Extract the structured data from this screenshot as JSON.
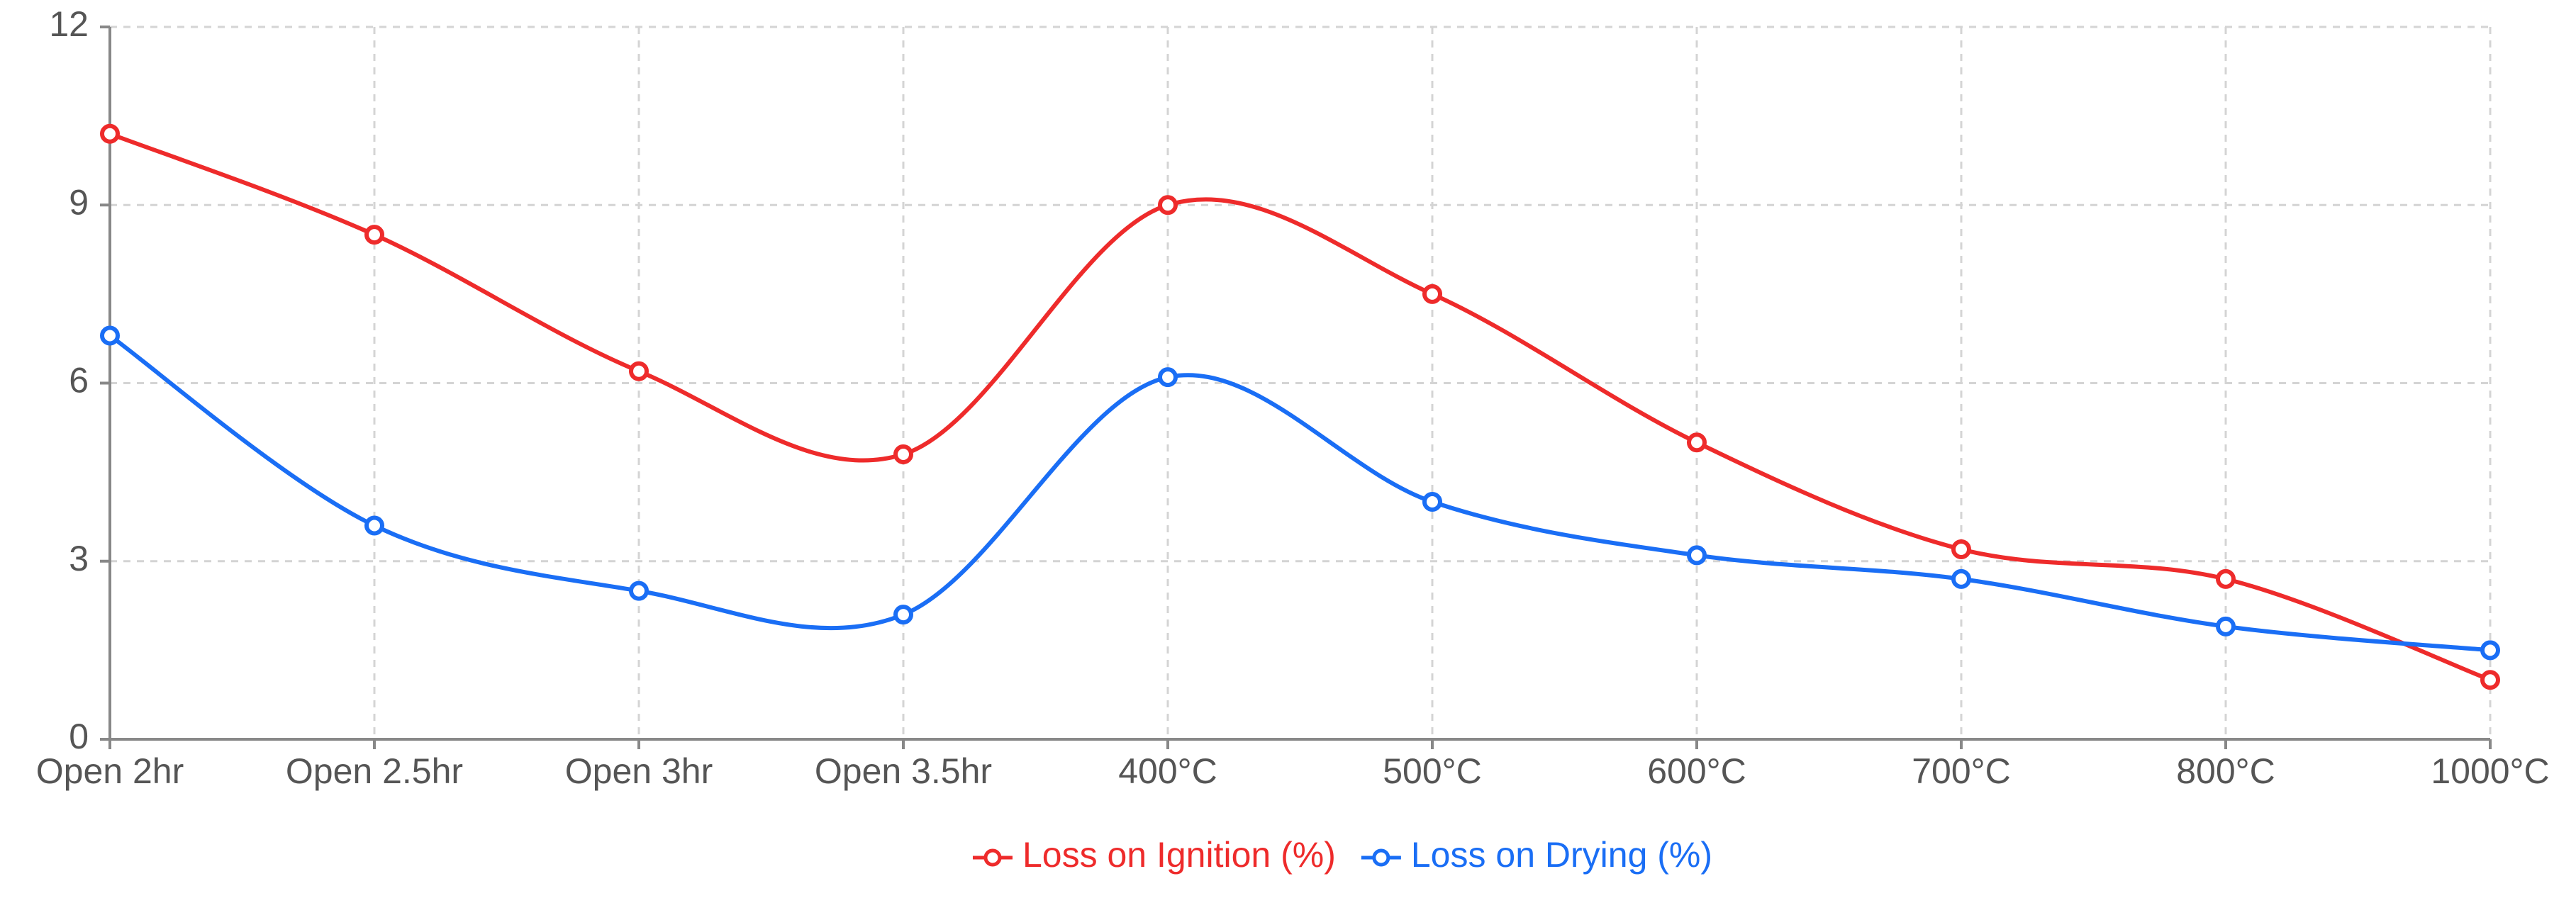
{
  "chart_data": {
    "type": "line",
    "categories": [
      "Open 2hr",
      "Open 2.5hr",
      "Open 3hr",
      "Open 3.5hr",
      "400°C",
      "500°C",
      "600°C",
      "700°C",
      "800°C",
      "1000°C"
    ],
    "series": [
      {
        "name": "Loss on Ignition (%)",
        "color": "#ee2b2b",
        "values": [
          10.2,
          8.5,
          6.2,
          4.8,
          9.0,
          7.5,
          5.0,
          3.2,
          2.7,
          1.0
        ]
      },
      {
        "name": "Loss on Drying (%)",
        "color": "#1a6ef5",
        "values": [
          6.8,
          3.6,
          2.5,
          2.1,
          6.1,
          4.0,
          3.1,
          2.7,
          1.9,
          1.5
        ]
      }
    ],
    "ylim": [
      0,
      12
    ],
    "yticks": [
      0,
      3,
      6,
      9,
      12
    ],
    "ytick_labels": [
      "0",
      "3",
      "6",
      "9",
      "12"
    ],
    "grid": true,
    "grid_style": "dashed",
    "curve": "smooth",
    "legend_position": "bottom-center",
    "title": "",
    "xlabel": "",
    "ylabel": ""
  }
}
